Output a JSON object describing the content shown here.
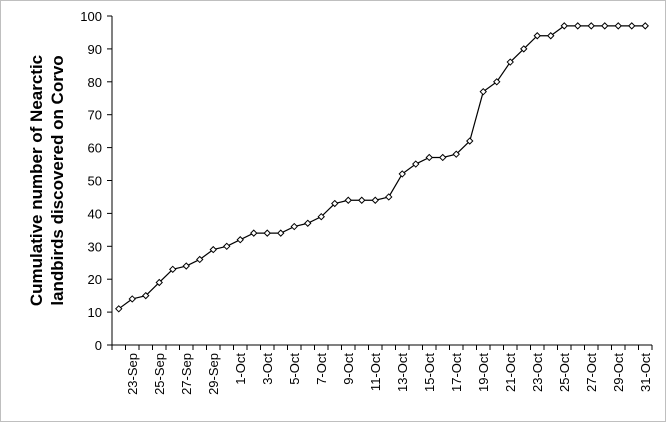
{
  "chart_data": {
    "type": "line",
    "title": "",
    "xlabel": "",
    "ylabel_line1": "Cumulative number of Nearctic",
    "ylabel_line2": "landbirds discovered on Corvo",
    "ylim": [
      0,
      100
    ],
    "y_ticks": [
      0,
      10,
      20,
      30,
      40,
      50,
      60,
      70,
      80,
      90,
      100
    ],
    "grid": false,
    "legend": "none",
    "line_color": "#000000",
    "marker": "diamond",
    "x": [
      "22-Sep",
      "23-Sep",
      "24-Sep",
      "25-Sep",
      "26-Sep",
      "27-Sep",
      "28-Sep",
      "29-Sep",
      "30-Sep",
      "1-Oct",
      "2-Oct",
      "3-Oct",
      "4-Oct",
      "5-Oct",
      "6-Oct",
      "7-Oct",
      "8-Oct",
      "9-Oct",
      "10-Oct",
      "11-Oct",
      "12-Oct",
      "13-Oct",
      "14-Oct",
      "15-Oct",
      "16-Oct",
      "17-Oct",
      "18-Oct",
      "19-Oct",
      "20-Oct",
      "21-Oct",
      "22-Oct",
      "23-Oct",
      "24-Oct",
      "25-Oct",
      "26-Oct",
      "27-Oct",
      "28-Oct",
      "29-Oct",
      "30-Oct",
      "31-Oct"
    ],
    "x_tick_labels": [
      "23-Sep",
      "25-Sep",
      "27-Sep",
      "29-Sep",
      "1-Oct",
      "3-Oct",
      "5-Oct",
      "7-Oct",
      "9-Oct",
      "11-Oct",
      "13-Oct",
      "15-Oct",
      "17-Oct",
      "19-Oct",
      "21-Oct",
      "23-Oct",
      "25-Oct",
      "27-Oct",
      "29-Oct",
      "31-Oct"
    ],
    "series": [
      {
        "values": [
          11,
          14,
          15,
          19,
          23,
          24,
          26,
          29,
          30,
          32,
          34,
          34,
          34,
          36,
          37,
          39,
          43,
          44,
          44,
          44,
          45,
          52,
          55,
          57,
          57,
          58,
          62,
          77,
          80,
          86,
          90,
          94,
          94,
          97,
          97,
          97,
          97,
          97,
          97,
          97
        ]
      }
    ]
  }
}
